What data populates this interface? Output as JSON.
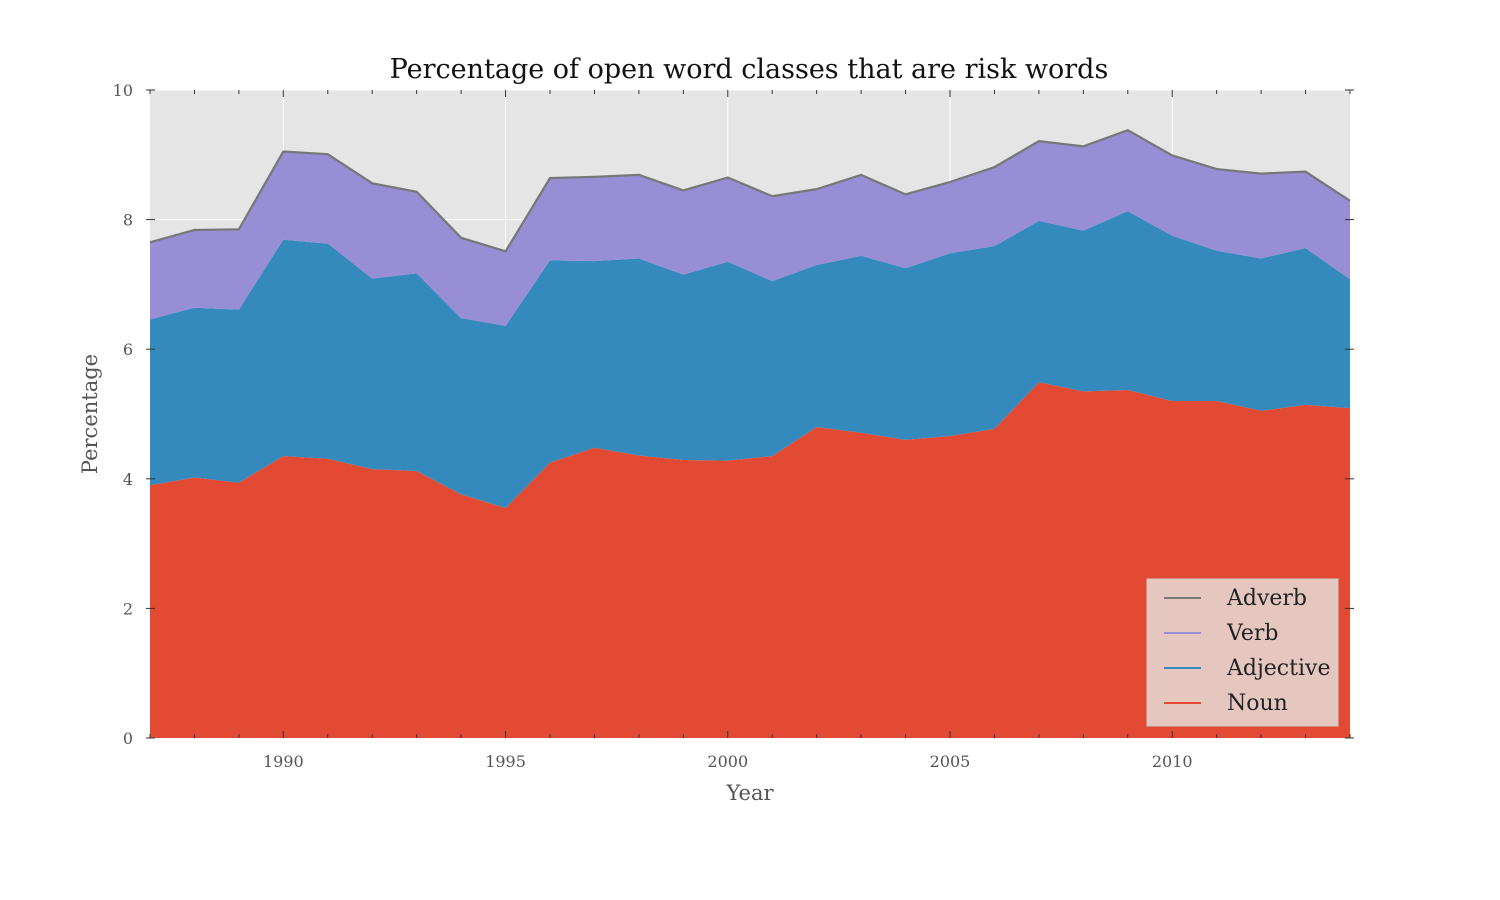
{
  "chart_data": {
    "type": "area",
    "stacked": true,
    "title": "Percentage of open word classes that are risk words",
    "xlabel": "Year",
    "ylabel": "Percentage",
    "xlim": [
      1987,
      2014
    ],
    "ylim": [
      0,
      10
    ],
    "xticks": [
      1990,
      1995,
      2000,
      2005,
      2010
    ],
    "yticks": [
      0,
      2,
      4,
      6,
      8,
      10
    ],
    "grid": true,
    "background": "#e5e5e5",
    "legend_position": "lower-right",
    "x": [
      1987,
      1988,
      1989,
      1990,
      1991,
      1992,
      1993,
      1994,
      1995,
      1996,
      1997,
      1998,
      1999,
      2000,
      2001,
      2002,
      2003,
      2004,
      2005,
      2006,
      2007,
      2008,
      2009,
      2010,
      2011,
      2012,
      2013,
      2014
    ],
    "series": [
      {
        "name": "Noun",
        "color": "#e24a33",
        "values": [
          3.9,
          4.02,
          3.94,
          4.35,
          4.31,
          4.15,
          4.12,
          3.76,
          3.55,
          4.25,
          4.48,
          4.36,
          4.29,
          4.28,
          4.35,
          4.8,
          4.71,
          4.6,
          4.66,
          4.77,
          5.49,
          5.35,
          5.37,
          5.2,
          5.2,
          5.05,
          5.14,
          5.09
        ]
      },
      {
        "name": "Adjective",
        "color": "#348abd",
        "values": [
          2.56,
          2.62,
          2.67,
          3.34,
          3.32,
          2.94,
          3.05,
          2.72,
          2.81,
          3.12,
          2.88,
          3.04,
          2.86,
          3.07,
          2.7,
          2.5,
          2.73,
          2.65,
          2.82,
          2.82,
          2.49,
          2.48,
          2.76,
          2.55,
          2.32,
          2.35,
          2.42,
          1.99
        ]
      },
      {
        "name": "Verb",
        "color": "#988ed5",
        "values": [
          1.19,
          1.2,
          1.24,
          1.36,
          1.38,
          1.47,
          1.26,
          1.24,
          1.15,
          1.27,
          1.3,
          1.29,
          1.3,
          1.3,
          1.31,
          1.17,
          1.25,
          1.14,
          1.1,
          1.22,
          1.23,
          1.3,
          1.25,
          1.24,
          1.26,
          1.31,
          1.18,
          1.21
        ]
      },
      {
        "name": "Adverb",
        "color": "#777777",
        "values": [
          0,
          0,
          0,
          0,
          0,
          0,
          0,
          0,
          0,
          0,
          0,
          0,
          0,
          0,
          0,
          0,
          0,
          0,
          0,
          0,
          0,
          0,
          0,
          0,
          0,
          0,
          0,
          0
        ]
      }
    ],
    "legend": [
      "Adverb",
      "Verb",
      "Adjective",
      "Noun"
    ]
  }
}
